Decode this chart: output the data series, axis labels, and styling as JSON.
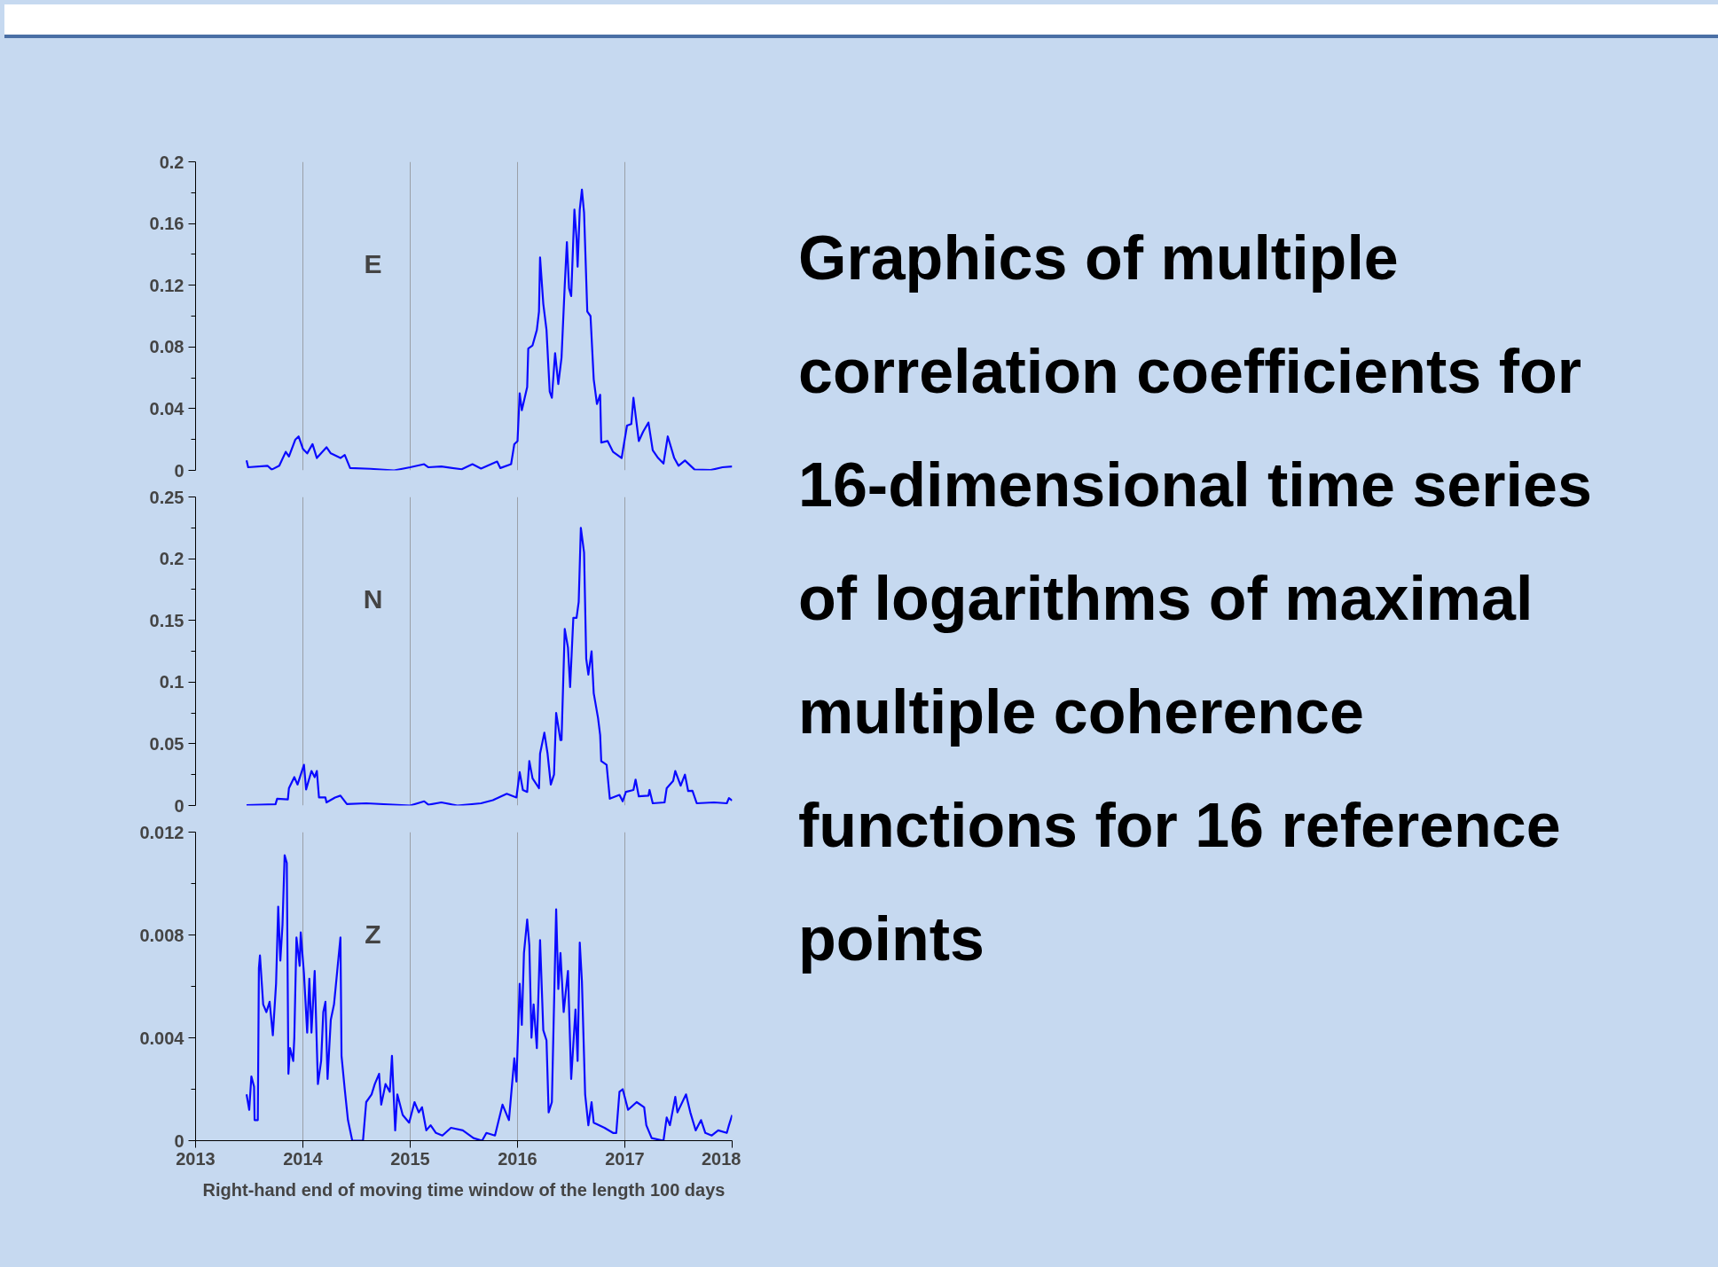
{
  "chart_data": [
    {
      "type": "line",
      "annotations": [
        "E"
      ],
      "xlim": [
        2013,
        2018
      ],
      "xticks": [
        2013,
        2014,
        2015,
        2016,
        2017,
        2018
      ],
      "ylim": [
        0,
        0.2
      ],
      "yticks": [
        0,
        0.04,
        0.08,
        0.12,
        0.16,
        0.2
      ],
      "grid": "x",
      "tick_labels": "y",
      "series": [
        {
          "color": "#0a0aff",
          "x": [
            2013.475,
            2013.49,
            2013.67,
            2013.71,
            2013.78,
            2013.84,
            2013.87,
            2013.93,
            2013.96,
            2014.0,
            2014.04,
            2014.09,
            2014.13,
            2014.22,
            2014.26,
            2014.35,
            2014.39,
            2014.44,
            2014.63,
            2014.85,
            2015.0,
            2015.13,
            2015.17,
            2015.29,
            2015.48,
            2015.58,
            2015.66,
            2015.81,
            2015.84,
            2015.94,
            2015.97,
            2016.0,
            2016.02,
            2016.04,
            2016.09,
            2016.1,
            2016.14,
            2016.18,
            2016.2,
            2016.21,
            2016.24,
            2016.27,
            2016.3,
            2016.32,
            2016.35,
            2016.38,
            2016.41,
            2016.44,
            2016.46,
            2016.48,
            2016.5,
            2016.53,
            2016.55,
            2016.56,
            2016.58,
            2016.6,
            2016.62,
            2016.65,
            2016.68,
            2016.71,
            2016.74,
            2016.77,
            2016.78,
            2016.84,
            2016.89,
            2016.97,
            2017.02,
            2017.06,
            2017.08,
            2017.13,
            2017.17,
            2017.22,
            2017.26,
            2017.31,
            2017.36,
            2017.4,
            2017.46,
            2017.5,
            2017.56,
            2017.65,
            2017.8,
            2017.91,
            2018.0
          ],
          "values": [
            0.0064,
            0.002,
            0.003,
            0.0005,
            0.003,
            0.012,
            0.009,
            0.02,
            0.022,
            0.014,
            0.011,
            0.017,
            0.008,
            0.015,
            0.011,
            0.008,
            0.01,
            0.0015,
            0.001,
            0.0,
            0.002,
            0.004,
            0.002,
            0.0025,
            0.0007,
            0.004,
            0.0012,
            0.0057,
            0.0015,
            0.004,
            0.017,
            0.019,
            0.05,
            0.039,
            0.054,
            0.079,
            0.081,
            0.091,
            0.103,
            0.138,
            0.108,
            0.091,
            0.051,
            0.047,
            0.076,
            0.056,
            0.073,
            0.12,
            0.148,
            0.118,
            0.113,
            0.169,
            0.15,
            0.132,
            0.169,
            0.182,
            0.167,
            0.103,
            0.1,
            0.059,
            0.043,
            0.049,
            0.018,
            0.019,
            0.012,
            0.008,
            0.029,
            0.03,
            0.047,
            0.019,
            0.025,
            0.031,
            0.013,
            0.008,
            0.0044,
            0.022,
            0.008,
            0.003,
            0.0064,
            0.0005,
            0.0002,
            0.002,
            0.0025
          ]
        }
      ]
    },
    {
      "type": "line",
      "annotations": [
        "N"
      ],
      "xlim": [
        2013,
        2018
      ],
      "xticks": [
        2013,
        2014,
        2015,
        2016,
        2017,
        2018
      ],
      "ylim": [
        0,
        0.25
      ],
      "yticks": [
        0,
        0.05,
        0.1,
        0.15,
        0.2,
        0.25
      ],
      "grid": "x",
      "tick_labels": "y",
      "series": [
        {
          "color": "#0a0aff",
          "x": [
            2013.475,
            2013.745,
            2013.76,
            2013.86,
            2013.87,
            2013.92,
            2013.95,
            2014.01,
            2014.03,
            2014.08,
            2014.11,
            2014.13,
            2014.15,
            2014.21,
            2014.22,
            2014.3,
            2014.35,
            2014.41,
            2014.59,
            2015.0,
            2015.13,
            2015.17,
            2015.29,
            2015.44,
            2015.66,
            2015.77,
            2015.9,
            2015.99,
            2016.02,
            2016.05,
            2016.09,
            2016.11,
            2016.14,
            2016.2,
            2016.21,
            2016.25,
            2016.28,
            2016.31,
            2016.34,
            2016.36,
            2016.4,
            2016.41,
            2016.44,
            2016.47,
            2016.49,
            2016.52,
            2016.55,
            2016.57,
            2016.59,
            2016.62,
            2016.64,
            2016.66,
            2016.69,
            2016.71,
            2016.75,
            2016.77,
            2016.78,
            2016.83,
            2016.86,
            2016.95,
            2016.98,
            2017.01,
            2017.08,
            2017.1,
            2017.13,
            2017.22,
            2017.23,
            2017.26,
            2017.37,
            2017.39,
            2017.45,
            2017.47,
            2017.52,
            2017.56,
            2017.59,
            2017.63,
            2017.67,
            2017.83,
            2017.95,
            2017.97,
            2018.0
          ],
          "values": [
            0.0003,
            0.001,
            0.0055,
            0.005,
            0.014,
            0.023,
            0.017,
            0.033,
            0.013,
            0.028,
            0.023,
            0.028,
            0.0065,
            0.0065,
            0.0025,
            0.0065,
            0.008,
            0.0012,
            0.0018,
            0.0,
            0.0034,
            0.0006,
            0.0025,
            0.0,
            0.0018,
            0.0043,
            0.0095,
            0.0065,
            0.027,
            0.0126,
            0.011,
            0.036,
            0.022,
            0.014,
            0.042,
            0.059,
            0.042,
            0.017,
            0.025,
            0.075,
            0.053,
            0.053,
            0.143,
            0.128,
            0.096,
            0.152,
            0.152,
            0.165,
            0.225,
            0.205,
            0.119,
            0.106,
            0.125,
            0.091,
            0.071,
            0.057,
            0.036,
            0.033,
            0.0055,
            0.0086,
            0.0034,
            0.011,
            0.0126,
            0.021,
            0.0074,
            0.008,
            0.0126,
            0.0018,
            0.0025,
            0.014,
            0.02,
            0.028,
            0.016,
            0.025,
            0.0117,
            0.012,
            0.0018,
            0.0025,
            0.0018,
            0.006,
            0.004
          ]
        }
      ]
    },
    {
      "type": "line",
      "annotations": [
        "Z"
      ],
      "xlabel": "Right-hand end of moving time window of the length 100 days",
      "xlim": [
        2013,
        2018
      ],
      "xticks": [
        2013,
        2014,
        2015,
        2016,
        2017,
        2018
      ],
      "ylim": [
        0,
        0.012
      ],
      "yticks": [
        0,
        0.004,
        0.008,
        0.012
      ],
      "grid": "x",
      "series": [
        {
          "color": "#0a0aff",
          "x": [
            2013.475,
            2013.5,
            2013.52,
            2013.545,
            2013.55,
            2013.58,
            2013.59,
            2013.6,
            2013.63,
            2013.66,
            2013.69,
            2013.72,
            2013.75,
            2013.77,
            2013.79,
            2013.81,
            2013.83,
            2013.85,
            2013.865,
            2013.88,
            2013.91,
            2013.92,
            2013.94,
            2013.97,
            2013.98,
            2014.01,
            2014.04,
            2014.06,
            2014.08,
            2014.11,
            2014.14,
            2014.17,
            2014.19,
            2014.21,
            2014.23,
            2014.26,
            2014.29,
            2014.32,
            2014.35,
            2014.36,
            2014.39,
            2014.42,
            2014.46,
            2014.56,
            2014.59,
            2014.64,
            2014.67,
            2014.71,
            2014.73,
            2014.77,
            2014.81,
            2014.83,
            2014.86,
            2014.88,
            2014.93,
            2014.99,
            2015.04,
            2015.08,
            2015.11,
            2015.15,
            2015.19,
            2015.24,
            2015.3,
            2015.38,
            2015.49,
            2015.59,
            2015.67,
            2015.71,
            2015.79,
            2015.86,
            2015.92,
            2015.97,
            2015.99,
            2016.02,
            2016.04,
            2016.06,
            2016.09,
            2016.11,
            2016.13,
            2016.15,
            2016.18,
            2016.21,
            2016.24,
            2016.27,
            2016.29,
            2016.32,
            2016.36,
            2016.38,
            2016.4,
            2016.43,
            2016.47,
            2016.5,
            2016.54,
            2016.56,
            2016.58,
            2016.6,
            2016.63,
            2016.66,
            2016.69,
            2016.71,
            2016.81,
            2016.89,
            2016.92,
            2016.95,
            2016.98,
            2017.03,
            2017.11,
            2017.18,
            2017.2,
            2017.25,
            2017.36,
            2017.39,
            2017.42,
            2017.47,
            2017.49,
            2017.57,
            2017.61,
            2017.66,
            2017.71,
            2017.75,
            2017.81,
            2017.87,
            2017.95,
            2017.97,
            2018.0
          ],
          "values": [
            0.0018,
            0.0012,
            0.0025,
            0.0021,
            0.0008,
            0.0008,
            0.0067,
            0.0072,
            0.0053,
            0.005,
            0.0054,
            0.0041,
            0.0061,
            0.0091,
            0.007,
            0.0084,
            0.0111,
            0.0108,
            0.0026,
            0.0036,
            0.0031,
            0.004,
            0.0079,
            0.0068,
            0.0081,
            0.0065,
            0.0042,
            0.0063,
            0.0042,
            0.0066,
            0.0022,
            0.0031,
            0.005,
            0.0054,
            0.0024,
            0.0047,
            0.0053,
            0.0066,
            0.0079,
            0.0033,
            0.002,
            0.0008,
            0.0,
            0.0,
            0.0015,
            0.0018,
            0.0022,
            0.0026,
            0.0014,
            0.0022,
            0.0019,
            0.0033,
            0.0004,
            0.0018,
            0.001,
            0.0007,
            0.0015,
            0.0011,
            0.0013,
            0.0004,
            0.0006,
            0.0003,
            0.0002,
            0.0005,
            0.0004,
            0.0001,
            0.0,
            0.0003,
            0.0002,
            0.0014,
            0.0008,
            0.0032,
            0.0023,
            0.0061,
            0.0045,
            0.0073,
            0.0086,
            0.0076,
            0.004,
            0.0053,
            0.0036,
            0.0078,
            0.0043,
            0.0039,
            0.0011,
            0.0015,
            0.009,
            0.0059,
            0.0073,
            0.005,
            0.0066,
            0.0024,
            0.0051,
            0.0031,
            0.0077,
            0.0062,
            0.0018,
            0.0006,
            0.0015,
            0.0007,
            0.0005,
            0.0003,
            0.0003,
            0.0019,
            0.002,
            0.0012,
            0.0015,
            0.0013,
            0.0006,
            0.0001,
            0.0,
            0.0009,
            0.0006,
            0.0017,
            0.0011,
            0.0018,
            0.0011,
            0.0004,
            0.0008,
            0.0003,
            0.0002,
            0.0004,
            0.0003,
            0.0006,
            0.001
          ]
        }
      ]
    },
    {
      "type": "other",
      "title": "Graphics of multiple correlation coefficients for 16-dimensional time series of logarithms of maximal multiple coherence functions for 16 reference points"
    }
  ]
}
